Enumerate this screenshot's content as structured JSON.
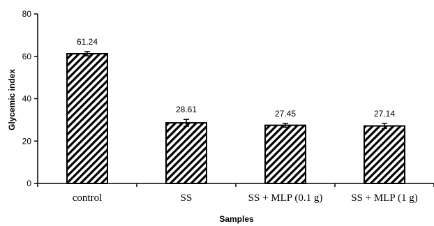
{
  "chart_data": {
    "type": "bar",
    "title": "",
    "xlabel": "Samples",
    "ylabel": "Glycemic index",
    "ylim": [
      0,
      80
    ],
    "yticks": [
      0,
      20,
      40,
      60,
      80
    ],
    "grid": false,
    "categories": [
      "control",
      "SS",
      "SS + MLP (0.1 g)",
      "SS + MLP (1 g)"
    ],
    "values": [
      61.24,
      28.61,
      27.45,
      27.14
    ],
    "data_labels": [
      "61.24",
      "28.61",
      "27.45",
      "27.14"
    ],
    "errors": [
      1.0,
      1.6,
      0.9,
      1.2
    ],
    "fill_pattern": "diagonal-hatch",
    "colors": {
      "bar_fill": "#ffffff",
      "hatch": "#000000",
      "axis": "#000000"
    }
  }
}
